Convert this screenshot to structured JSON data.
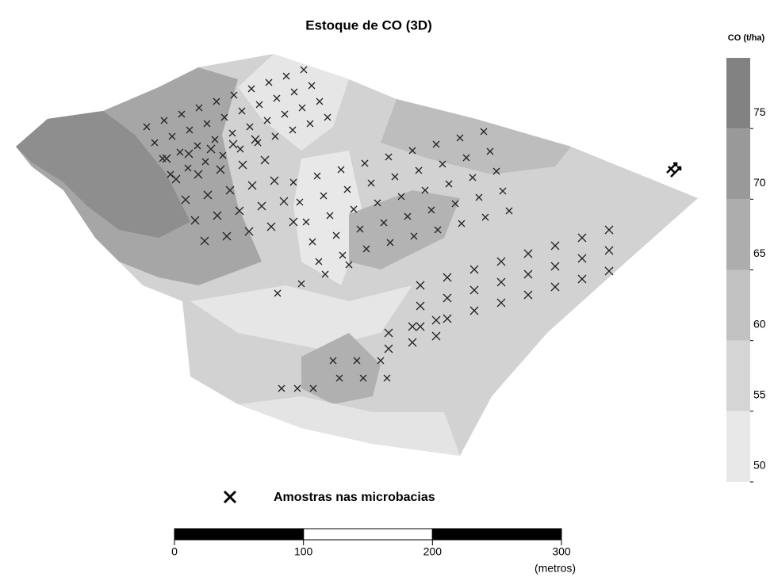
{
  "title": "Estoque de CO (3D)",
  "colorbar": {
    "title": "CO (t/ha)",
    "range": [
      50,
      80
    ],
    "ticks": [
      50,
      55,
      60,
      65,
      70,
      75
    ],
    "colors": [
      "#e8e8e8",
      "#d5d5d5",
      "#c2c2c2",
      "#adadad",
      "#999999",
      "#828282"
    ]
  },
  "legend": {
    "label": "Amostras nas microbacias"
  },
  "scale_bar": {
    "ticks": [
      0,
      100,
      200,
      300
    ],
    "unit": "(metros)"
  }
}
